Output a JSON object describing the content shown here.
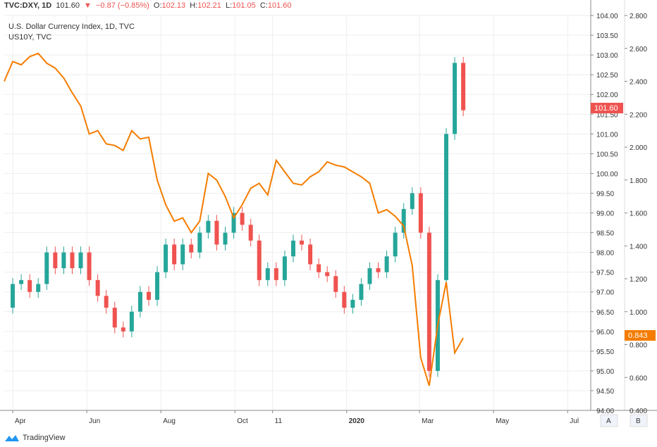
{
  "header": {
    "symbol": "TVC:DXY, 1D",
    "last": "101.60",
    "arrow": "▼",
    "change": "−0.87 (−0.85%)",
    "o_label": "O:",
    "o_value": "102.13",
    "h_label": "H:",
    "h_value": "102.21",
    "l_label": "L:",
    "l_value": "101.05",
    "c_label": "C:",
    "c_value": "101.60"
  },
  "legend": {
    "main": "U.S. Dollar Currency Index, 1D, TVC",
    "overlay": "US10Y, TVC"
  },
  "footer": {
    "brand": "TradingView"
  },
  "axis_buttons": {
    "a": "A",
    "b": "B"
  },
  "colors": {
    "up": "#26a69a",
    "down": "#ef5350",
    "line": "#f57c00",
    "grid": "#eeeeee",
    "axis": "#888888"
  },
  "chart_data": {
    "type": "line",
    "x_ticks": [
      "Apr",
      "Jun",
      "Aug",
      "Oct",
      "11",
      "2020",
      "Mar",
      "May",
      "Jul"
    ],
    "x_range": [
      "2019-03-25",
      "2020-07-20"
    ],
    "y_left": {
      "ticks": [
        "104.00",
        "103.50",
        "103.00",
        "102.50",
        "102.00",
        "101.50",
        "101.00",
        "100.50",
        "100.00",
        "99.50",
        "99.00",
        "98.50",
        "98.00",
        "97.50",
        "97.00",
        "96.50",
        "96.00",
        "95.50",
        "95.00",
        "94.50",
        "94.00"
      ],
      "range": [
        94.0,
        104.0
      ]
    },
    "y_right": {
      "ticks": [
        "2.800",
        "2.600",
        "2.400",
        "2.200",
        "2.000",
        "1.800",
        "1.600",
        "1.400",
        "1.200",
        "1.000",
        "0.800",
        "0.600",
        "0.400"
      ],
      "range": [
        0.4,
        2.8
      ]
    },
    "price_label": "101.60",
    "yield_label": "0.843",
    "series": [
      {
        "name": "U.S. Dollar Currency Index, 1D, TVC",
        "kind": "candlestick",
        "points": [
          [
            "2019-03-25",
            96.6
          ],
          [
            "2019-04-01",
            97.2
          ],
          [
            "2019-04-08",
            97.3
          ],
          [
            "2019-04-15",
            97.0
          ],
          [
            "2019-04-22",
            97.2
          ],
          [
            "2019-04-29",
            98.0
          ],
          [
            "2019-05-06",
            97.6
          ],
          [
            "2019-05-13",
            98.0
          ],
          [
            "2019-05-20",
            97.6
          ],
          [
            "2019-05-27",
            98.0
          ],
          [
            "2019-06-03",
            97.3
          ],
          [
            "2019-06-10",
            96.9
          ],
          [
            "2019-06-17",
            96.6
          ],
          [
            "2019-06-24",
            96.1
          ],
          [
            "2019-07-01",
            96.0
          ],
          [
            "2019-07-08",
            96.5
          ],
          [
            "2019-07-15",
            97.0
          ],
          [
            "2019-07-22",
            96.8
          ],
          [
            "2019-07-29",
            97.5
          ],
          [
            "2019-08-05",
            98.2
          ],
          [
            "2019-08-12",
            97.7
          ],
          [
            "2019-08-19",
            98.2
          ],
          [
            "2019-08-26",
            98.0
          ],
          [
            "2019-09-02",
            98.5
          ],
          [
            "2019-09-09",
            98.8
          ],
          [
            "2019-09-16",
            98.2
          ],
          [
            "2019-09-23",
            98.5
          ],
          [
            "2019-09-30",
            99.0
          ],
          [
            "2019-10-07",
            98.7
          ],
          [
            "2019-10-14",
            98.3
          ],
          [
            "2019-10-21",
            97.3
          ],
          [
            "2019-10-28",
            97.6
          ],
          [
            "2019-11-04",
            97.3
          ],
          [
            "2019-11-11",
            97.9
          ],
          [
            "2019-11-18",
            98.3
          ],
          [
            "2019-11-25",
            98.2
          ],
          [
            "2019-12-02",
            97.7
          ],
          [
            "2019-12-09",
            97.5
          ],
          [
            "2019-12-16",
            97.4
          ],
          [
            "2019-12-23",
            97.0
          ],
          [
            "2019-12-30",
            96.6
          ],
          [
            "2020-01-06",
            96.8
          ],
          [
            "2020-01-13",
            97.2
          ],
          [
            "2020-01-20",
            97.6
          ],
          [
            "2020-01-27",
            97.5
          ],
          [
            "2020-02-03",
            97.9
          ],
          [
            "2020-02-10",
            98.5
          ],
          [
            "2020-02-17",
            99.1
          ],
          [
            "2020-02-24",
            99.5
          ],
          [
            "2020-03-02",
            98.5
          ],
          [
            "2020-03-09",
            95.0
          ],
          [
            "2020-03-16",
            97.3
          ],
          [
            "2020-03-23",
            101.0
          ],
          [
            "2020-03-30",
            102.8
          ],
          [
            "2020-04-06",
            101.6
          ]
        ]
      },
      {
        "name": "US10Y, TVC",
        "kind": "line",
        "points": [
          [
            "2019-03-25",
            2.4
          ],
          [
            "2019-04-01",
            2.52
          ],
          [
            "2019-04-08",
            2.5
          ],
          [
            "2019-04-15",
            2.55
          ],
          [
            "2019-04-22",
            2.57
          ],
          [
            "2019-04-29",
            2.51
          ],
          [
            "2019-05-06",
            2.48
          ],
          [
            "2019-05-13",
            2.42
          ],
          [
            "2019-05-20",
            2.33
          ],
          [
            "2019-05-27",
            2.25
          ],
          [
            "2019-06-03",
            2.08
          ],
          [
            "2019-06-10",
            2.1
          ],
          [
            "2019-06-17",
            2.02
          ],
          [
            "2019-06-24",
            2.01
          ],
          [
            "2019-07-01",
            1.98
          ],
          [
            "2019-07-08",
            2.1
          ],
          [
            "2019-07-15",
            2.05
          ],
          [
            "2019-07-22",
            2.06
          ],
          [
            "2019-07-29",
            1.8
          ],
          [
            "2019-08-05",
            1.65
          ],
          [
            "2019-08-12",
            1.55
          ],
          [
            "2019-08-19",
            1.57
          ],
          [
            "2019-08-26",
            1.48
          ],
          [
            "2019-09-02",
            1.55
          ],
          [
            "2019-09-09",
            1.84
          ],
          [
            "2019-09-16",
            1.8
          ],
          [
            "2019-09-23",
            1.7
          ],
          [
            "2019-09-30",
            1.57
          ],
          [
            "2019-10-07",
            1.65
          ],
          [
            "2019-10-14",
            1.75
          ],
          [
            "2019-10-21",
            1.78
          ],
          [
            "2019-10-28",
            1.71
          ],
          [
            "2019-11-04",
            1.92
          ],
          [
            "2019-11-11",
            1.85
          ],
          [
            "2019-11-18",
            1.78
          ],
          [
            "2019-11-25",
            1.77
          ],
          [
            "2019-12-02",
            1.82
          ],
          [
            "2019-12-09",
            1.85
          ],
          [
            "2019-12-16",
            1.91
          ],
          [
            "2019-12-23",
            1.89
          ],
          [
            "2019-12-30",
            1.88
          ],
          [
            "2020-01-06",
            1.85
          ],
          [
            "2020-01-13",
            1.82
          ],
          [
            "2020-01-20",
            1.78
          ],
          [
            "2020-01-27",
            1.6
          ],
          [
            "2020-02-03",
            1.62
          ],
          [
            "2020-02-10",
            1.58
          ],
          [
            "2020-02-17",
            1.52
          ],
          [
            "2020-02-24",
            1.28
          ],
          [
            "2020-03-02",
            0.72
          ],
          [
            "2020-03-09",
            0.55
          ],
          [
            "2020-03-16",
            0.92
          ],
          [
            "2020-03-23",
            1.18
          ],
          [
            "2020-03-30",
            0.75
          ],
          [
            "2020-04-06",
            0.84
          ]
        ]
      }
    ]
  }
}
